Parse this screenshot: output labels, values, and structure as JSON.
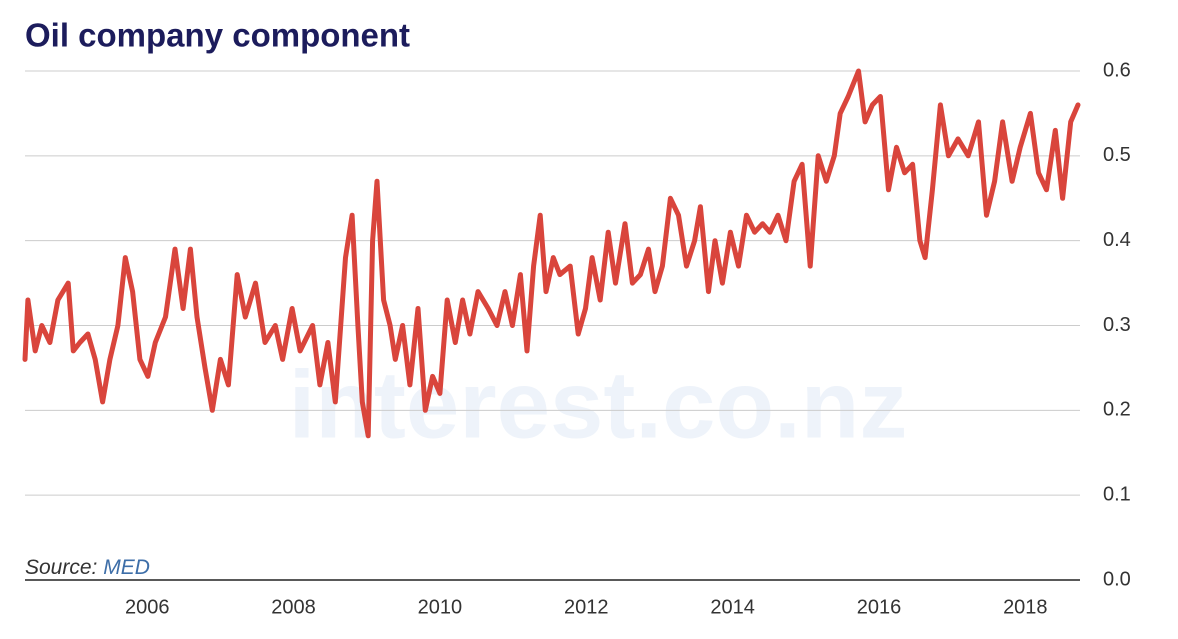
{
  "chart_data": {
    "type": "line",
    "title": "Oil company component",
    "source_label": "Source:",
    "source": "MED",
    "watermark": "interest.co.nz",
    "color": "#d9453c",
    "grid": true,
    "xlim": [
      2004.33,
      2018.72
    ],
    "xticks": [
      2006,
      2008,
      2010,
      2012,
      2014,
      2016,
      2018
    ],
    "ylim": [
      0,
      0.6
    ],
    "yticks": [
      {
        "value": 0,
        "label": "0.0"
      },
      0.1,
      0.2,
      0.3,
      0.4,
      0.5,
      0.6
    ],
    "x": [
      2004.33,
      2004.37,
      2004.47,
      2004.56,
      2004.67,
      2004.78,
      2004.92,
      2004.99,
      2005.08,
      2005.19,
      2005.29,
      2005.39,
      2005.49,
      2005.6,
      2005.7,
      2005.8,
      2005.9,
      2006.01,
      2006.11,
      2006.25,
      2006.38,
      2006.49,
      2006.59,
      2006.68,
      2006.79,
      2006.89,
      2007.0,
      2007.11,
      2007.23,
      2007.34,
      2007.48,
      2007.61,
      2007.75,
      2007.85,
      2007.98,
      2008.09,
      2008.26,
      2008.36,
      2008.47,
      2008.57,
      2008.71,
      2008.8,
      2008.88,
      2008.94,
      2009.02,
      2009.08,
      2009.14,
      2009.23,
      2009.32,
      2009.39,
      2009.49,
      2009.59,
      2009.7,
      2009.8,
      2009.9,
      2010.0,
      2010.1,
      2010.21,
      2010.31,
      2010.41,
      2010.52,
      2010.66,
      2010.78,
      2010.89,
      2010.99,
      2011.1,
      2011.19,
      2011.28,
      2011.37,
      2011.45,
      2011.55,
      2011.64,
      2011.78,
      2011.89,
      2011.99,
      2012.08,
      2012.19,
      2012.3,
      2012.4,
      2012.53,
      2012.63,
      2012.74,
      2012.85,
      2012.94,
      2013.04,
      2013.15,
      2013.26,
      2013.37,
      2013.48,
      2013.56,
      2013.67,
      2013.76,
      2013.86,
      2013.97,
      2014.08,
      2014.19,
      2014.3,
      2014.41,
      2014.51,
      2014.62,
      2014.73,
      2014.84,
      2014.95,
      2015.06,
      2015.17,
      2015.28,
      2015.39,
      2015.47,
      2015.58,
      2015.72,
      2015.81,
      2015.91,
      2016.02,
      2016.13,
      2016.24,
      2016.35,
      2016.46,
      2016.56,
      2016.63,
      2016.73,
      2016.84,
      2016.95,
      2017.08,
      2017.22,
      2017.36,
      2017.47,
      2017.58,
      2017.69,
      2017.82,
      2017.93,
      2018.07,
      2018.18,
      2018.29,
      2018.41,
      2018.51,
      2018.62,
      2018.72
    ],
    "values": [
      0.26,
      0.33,
      0.27,
      0.3,
      0.28,
      0.33,
      0.35,
      0.27,
      0.28,
      0.29,
      0.26,
      0.21,
      0.26,
      0.3,
      0.38,
      0.34,
      0.26,
      0.24,
      0.28,
      0.31,
      0.39,
      0.32,
      0.39,
      0.31,
      0.25,
      0.2,
      0.26,
      0.23,
      0.36,
      0.31,
      0.35,
      0.28,
      0.3,
      0.26,
      0.32,
      0.27,
      0.3,
      0.23,
      0.28,
      0.21,
      0.38,
      0.43,
      0.3,
      0.21,
      0.17,
      0.4,
      0.47,
      0.33,
      0.3,
      0.26,
      0.3,
      0.23,
      0.32,
      0.2,
      0.24,
      0.22,
      0.33,
      0.28,
      0.33,
      0.29,
      0.34,
      0.32,
      0.3,
      0.34,
      0.3,
      0.36,
      0.27,
      0.37,
      0.43,
      0.34,
      0.38,
      0.36,
      0.37,
      0.29,
      0.32,
      0.38,
      0.33,
      0.41,
      0.35,
      0.42,
      0.35,
      0.36,
      0.39,
      0.34,
      0.37,
      0.45,
      0.43,
      0.37,
      0.4,
      0.44,
      0.34,
      0.4,
      0.35,
      0.41,
      0.37,
      0.43,
      0.41,
      0.42,
      0.41,
      0.43,
      0.4,
      0.47,
      0.49,
      0.37,
      0.5,
      0.47,
      0.5,
      0.55,
      0.57,
      0.6,
      0.54,
      0.56,
      0.57,
      0.46,
      0.51,
      0.48,
      0.49,
      0.4,
      0.38,
      0.46,
      0.56,
      0.5,
      0.52,
      0.5,
      0.54,
      0.43,
      0.47,
      0.54,
      0.47,
      0.51,
      0.55,
      0.48,
      0.46,
      0.53,
      0.45,
      0.54,
      0.56
    ]
  }
}
